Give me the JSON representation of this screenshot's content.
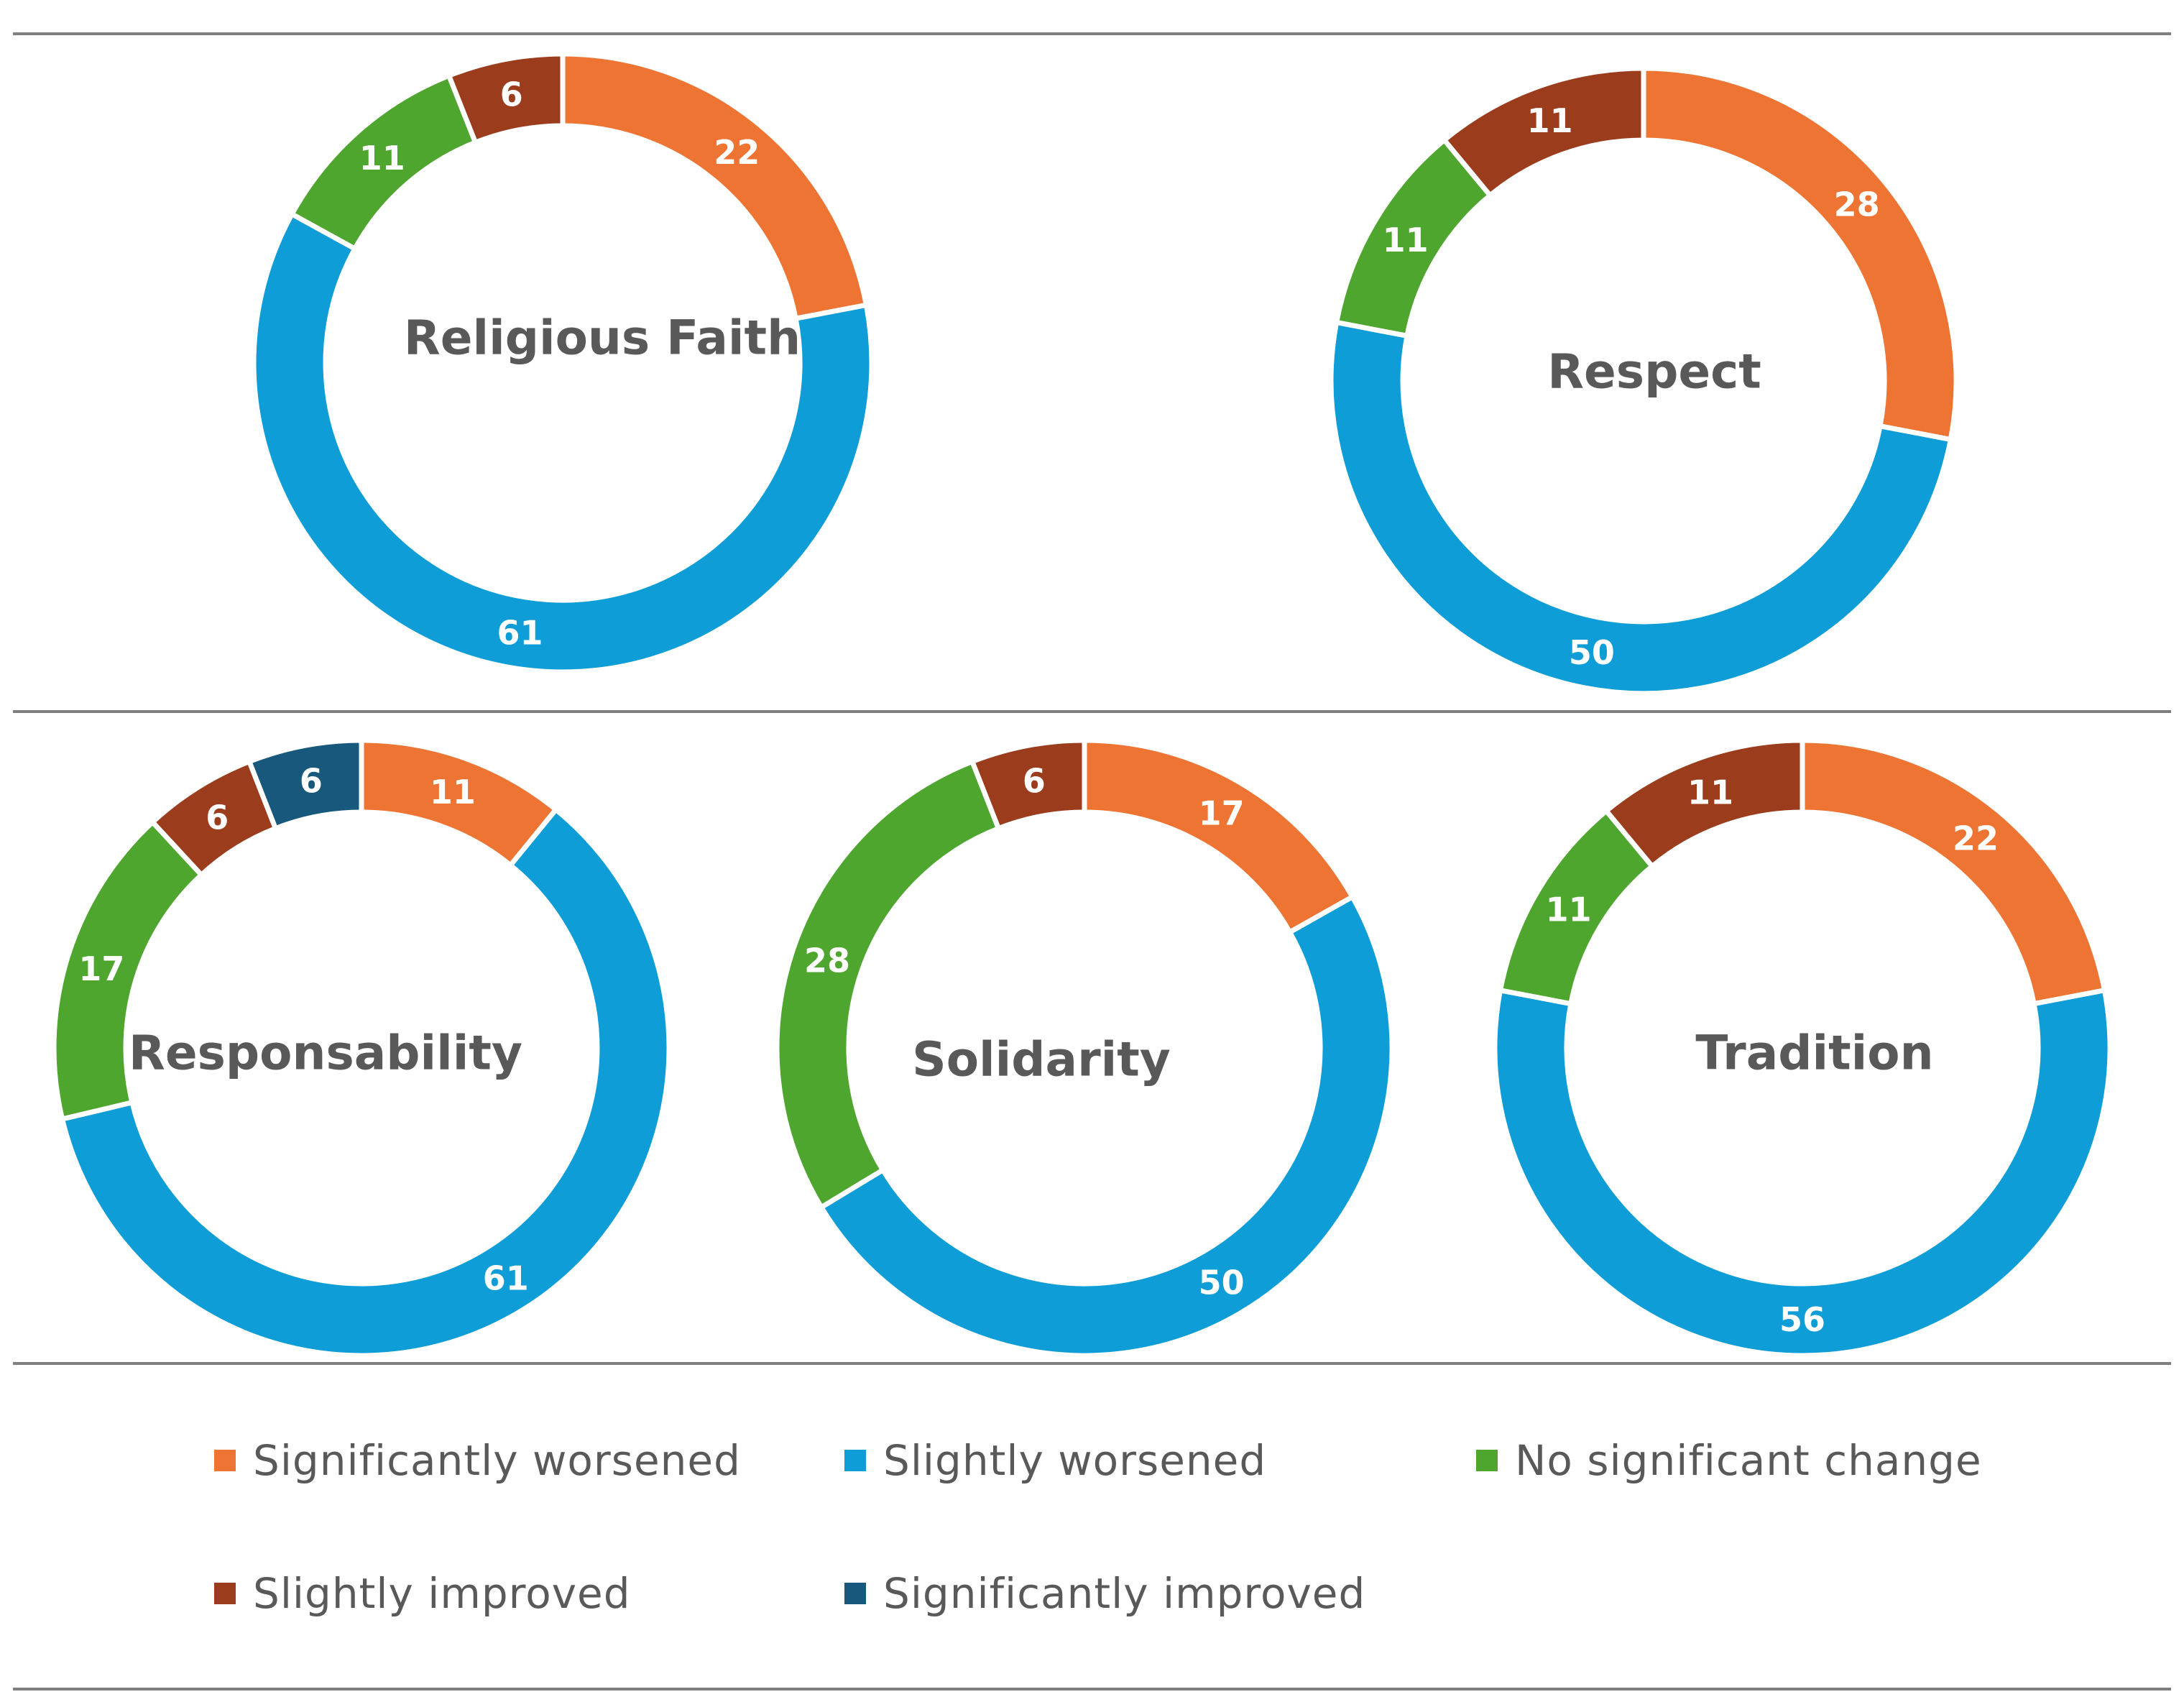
{
  "chart_data": {
    "type": "pie",
    "subtype": "donut",
    "categories": [
      "Significantly worsened",
      "Slightly worsened",
      "No significant change",
      "Slightly improved",
      "Significantly improved"
    ],
    "colors": {
      "Significantly worsened": "#ED7432",
      "Slightly worsened": "#0E9DD6",
      "No significant change": "#4EA62F",
      "Slightly improved": "#9B3C1D",
      "Significantly improved": "#17587C"
    },
    "charts": [
      {
        "title": "Religious Faith",
        "slices": [
          {
            "category": "Significantly worsened",
            "value": 22
          },
          {
            "category": "Slightly worsened",
            "value": 61
          },
          {
            "category": "No significant change",
            "value": 11
          },
          {
            "category": "Slightly improved",
            "value": 6
          }
        ]
      },
      {
        "title": "Respect",
        "slices": [
          {
            "category": "Significantly worsened",
            "value": 28
          },
          {
            "category": "Slightly worsened",
            "value": 50
          },
          {
            "category": "No significant change",
            "value": 11
          },
          {
            "category": "Slightly improved",
            "value": 11
          }
        ]
      },
      {
        "title": "Responsability",
        "slices": [
          {
            "category": "Significantly worsened",
            "value": 11
          },
          {
            "category": "Slightly worsened",
            "value": 61
          },
          {
            "category": "No significant change",
            "value": 17
          },
          {
            "category": "Slightly improved",
            "value": 6
          },
          {
            "category": "Significantly improved",
            "value": 6
          }
        ]
      },
      {
        "title": "Solidarity",
        "slices": [
          {
            "category": "Significantly worsened",
            "value": 17
          },
          {
            "category": "Slightly worsened",
            "value": 50
          },
          {
            "category": "No significant change",
            "value": 28
          },
          {
            "category": "Slightly improved",
            "value": 6
          }
        ]
      },
      {
        "title": "Tradition",
        "slices": [
          {
            "category": "Significantly worsened",
            "value": 22
          },
          {
            "category": "Slightly worsened",
            "value": 56
          },
          {
            "category": "No significant change",
            "value": 11
          },
          {
            "category": "Slightly improved",
            "value": 11
          }
        ]
      }
    ]
  },
  "legend": [
    {
      "label": "Significantly worsened",
      "color": "#ED7432"
    },
    {
      "label": "Slightly worsened",
      "color": "#0E9DD6"
    },
    {
      "label": "No significant change",
      "color": "#4EA62F"
    },
    {
      "label": "Slightly improved",
      "color": "#9B3C1D"
    },
    {
      "label": "Significantly improved",
      "color": "#17587C"
    }
  ]
}
